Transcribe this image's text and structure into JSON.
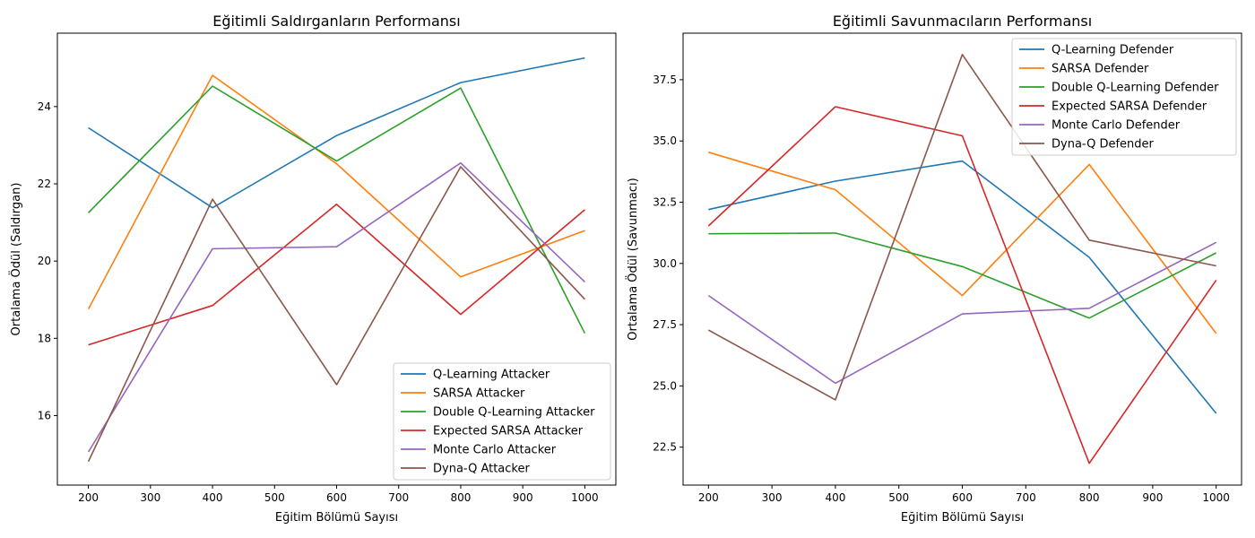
{
  "chart_data": [
    {
      "type": "line",
      "title": "Eğitimli Saldırganların Performansı",
      "xlabel": "Eğitim Bölümü Sayısı",
      "ylabel": "Ortalama Ödül (Saldırgan)",
      "x": [
        200,
        400,
        600,
        800,
        1000
      ],
      "xlim": [
        150,
        1050
      ],
      "ylim": [
        14.2,
        25.9
      ],
      "xticks": [
        200,
        300,
        400,
        500,
        600,
        700,
        800,
        900,
        1000
      ],
      "yticks": [
        16,
        18,
        20,
        22,
        24
      ],
      "ytick_decimals": 0,
      "grid": false,
      "legend_position": "lower right",
      "series": [
        {
          "name": "Q-Learning Attacker",
          "color": "#1f77b4",
          "values": [
            23.45,
            21.38,
            23.25,
            24.62,
            25.26
          ]
        },
        {
          "name": "SARSA Attacker",
          "color": "#ff7f0e",
          "values": [
            18.76,
            24.81,
            22.52,
            19.59,
            20.79
          ]
        },
        {
          "name": "Double Q-Learning Attacker",
          "color": "#2ca02c",
          "values": [
            21.25,
            24.53,
            22.59,
            24.48,
            18.13
          ]
        },
        {
          "name": "Expected SARSA Attacker",
          "color": "#d62728",
          "values": [
            17.83,
            18.85,
            21.47,
            18.62,
            21.33
          ]
        },
        {
          "name": "Monte Carlo Attacker",
          "color": "#9467bd",
          "values": [
            15.06,
            20.32,
            20.37,
            22.54,
            19.46
          ]
        },
        {
          "name": "Dyna-Q Attacker",
          "color": "#8c564b",
          "values": [
            14.81,
            21.6,
            16.8,
            22.44,
            19.01
          ]
        }
      ]
    },
    {
      "type": "line",
      "title": "Eğitimli Savunmacıların Performansı",
      "xlabel": "Eğitim Bölümü Sayısı",
      "ylabel": "Ortalama Ödül (Savunmacı)",
      "x": [
        200,
        400,
        600,
        800,
        1000
      ],
      "xlim": [
        160,
        1040
      ],
      "ylim": [
        20.95,
        39.4
      ],
      "xticks": [
        200,
        300,
        400,
        500,
        600,
        700,
        800,
        900,
        1000
      ],
      "yticks": [
        22.5,
        25.0,
        27.5,
        30.0,
        32.5,
        35.0,
        37.5
      ],
      "ytick_decimals": 1,
      "grid": false,
      "legend_position": "upper right",
      "series": [
        {
          "name": "Q-Learning Defender",
          "color": "#1f77b4",
          "values": [
            32.2,
            33.36,
            34.18,
            30.25,
            23.88
          ]
        },
        {
          "name": "SARSA Defender",
          "color": "#ff7f0e",
          "values": [
            34.54,
            33.01,
            28.69,
            34.04,
            27.14
          ]
        },
        {
          "name": "Double Q-Learning Defender",
          "color": "#2ca02c",
          "values": [
            31.21,
            31.24,
            29.87,
            27.77,
            30.43
          ]
        },
        {
          "name": "Expected SARSA Defender",
          "color": "#d62728",
          "values": [
            31.53,
            36.4,
            35.21,
            21.84,
            29.32
          ]
        },
        {
          "name": "Monte Carlo Defender",
          "color": "#9467bd",
          "values": [
            28.69,
            25.11,
            27.94,
            28.17,
            30.86
          ]
        },
        {
          "name": "Dyna-Q Defender",
          "color": "#8c564b",
          "values": [
            27.28,
            24.43,
            38.53,
            30.95,
            29.9
          ]
        }
      ]
    }
  ]
}
